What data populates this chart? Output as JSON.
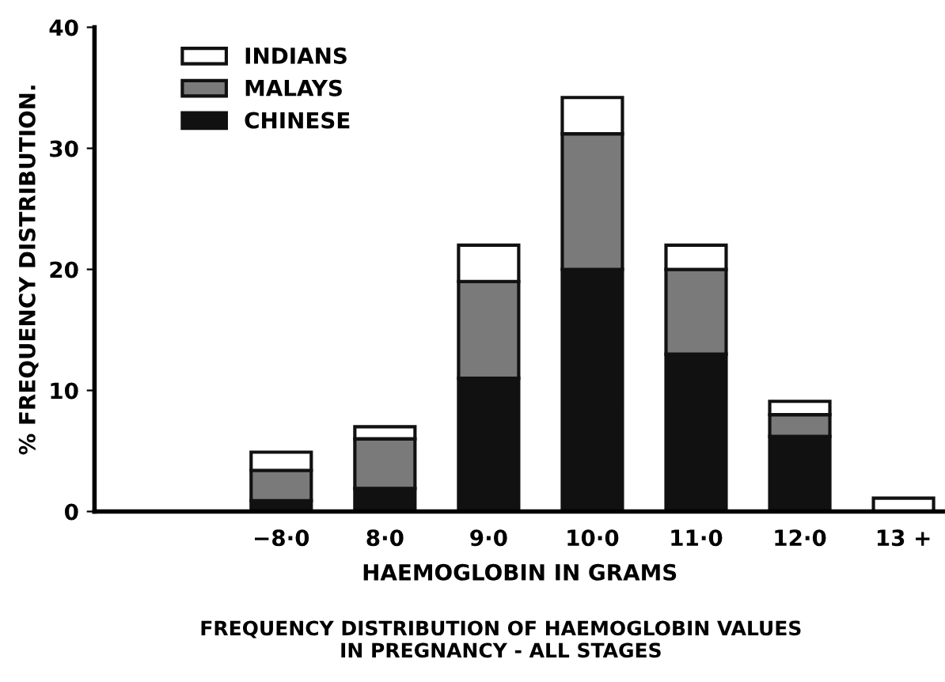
{
  "chart_data": {
    "type": "bar",
    "stacked": true,
    "title": "FREQUENCY DISTRIBUTION OF HAEMOGLOBIN VALUES\nIN PREGNANCY - ALL STAGES",
    "xlabel": "HAEMOGLOBIN IN GRAMS",
    "ylabel": "% FREQUENCY DISTRIBUTION.",
    "categories": [
      "−8·0",
      "8·0",
      "9·0",
      "10·0",
      "11·0",
      "12·0",
      "13 +"
    ],
    "series": [
      {
        "name": "CHINESE",
        "color": "#111111",
        "values": [
          0.9,
          1.9,
          11,
          20,
          13,
          6.2,
          null
        ]
      },
      {
        "name": "MALAYS",
        "color": "#7a7a7a",
        "values": [
          2.5,
          4.1,
          8,
          11.2,
          7,
          1.8,
          null
        ]
      },
      {
        "name": "INDIANS",
        "color": "#ffffff",
        "values": [
          1.5,
          1.0,
          3,
          3,
          2,
          1.1,
          1.1
        ]
      }
    ],
    "ylim": [
      0,
      40
    ],
    "yticks": [
      0,
      10,
      20,
      30,
      40
    ],
    "grid": false,
    "legend": "top left"
  }
}
